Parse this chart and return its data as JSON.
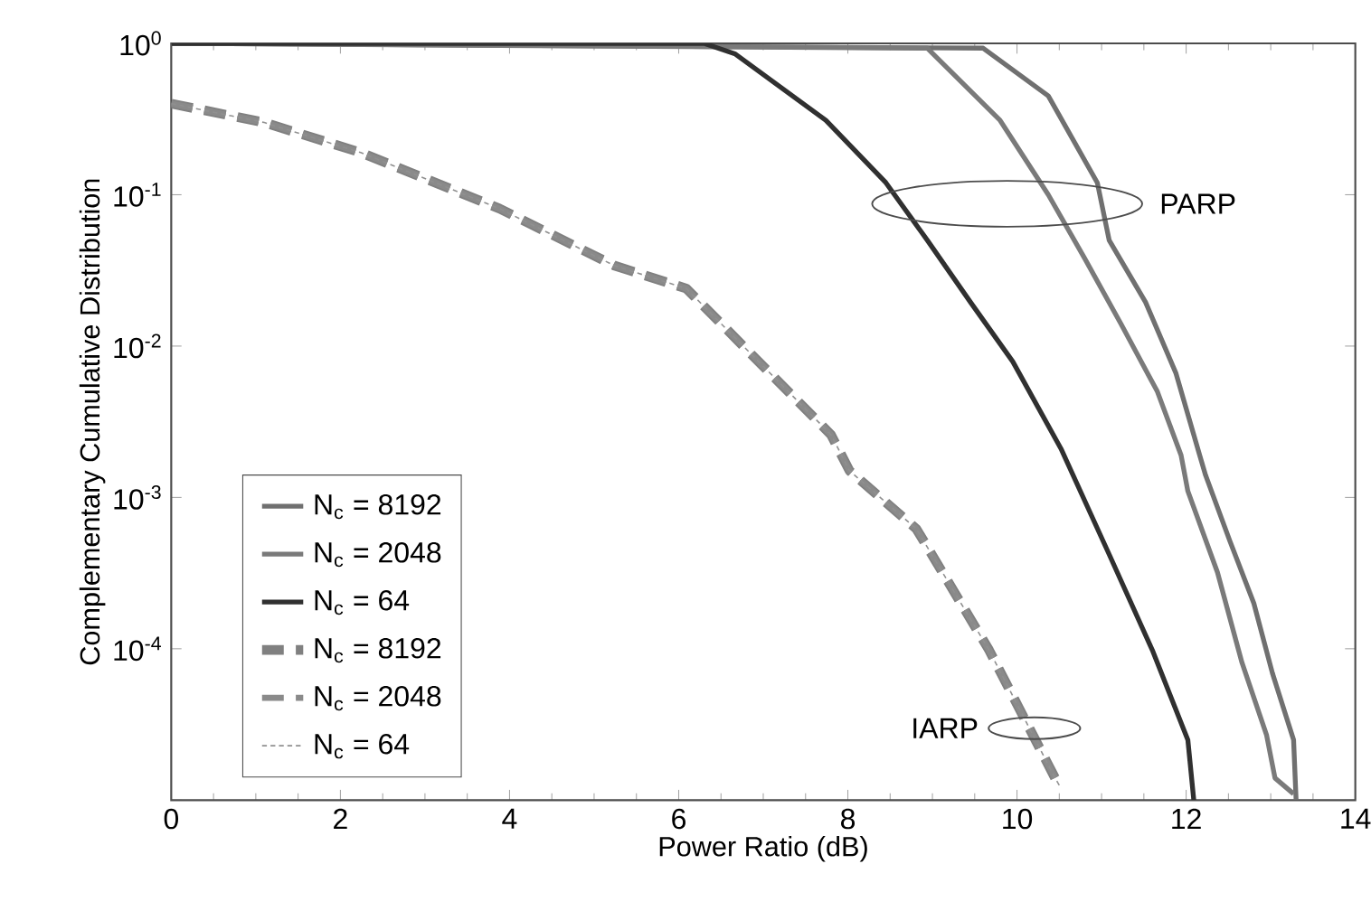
{
  "chart_data": {
    "type": "line",
    "xlabel": "Power Ratio (dB)",
    "ylabel": "Complementary Cumulative Distribution",
    "log": "y",
    "xlim": [
      0,
      14
    ],
    "xticks": [
      0,
      2,
      4,
      6,
      8,
      10,
      12,
      14
    ],
    "ylim": [
      1e-05,
      1
    ],
    "yticks": [
      {
        "value": 1,
        "label": "10$^{0}$"
      },
      {
        "value": 0.1,
        "label": "10$^{-1}$"
      },
      {
        "value": 0.01,
        "label": "10$^{-2}$"
      },
      {
        "value": 0.001,
        "label": "10$^{-3}$"
      },
      {
        "value": 0.0001,
        "label": "10$^{-4}$"
      },
      {
        "value": 1e-05,
        "label": null
      }
    ],
    "legend": "bottom left",
    "grid": false,
    "series": [
      {
        "name": "N$_{c}$ = 8192",
        "color": "#707070",
        "line_style": "solid",
        "x": [
          0,
          9.6,
          10.37,
          10.95,
          11.09,
          11.52,
          11.88,
          12.16,
          12.23,
          12.52,
          12.8,
          13.02,
          13.27,
          13.3
        ],
        "values": [
          1,
          0.93,
          0.45,
          0.12,
          0.05,
          0.0195,
          0.0066,
          0.0019,
          0.0014,
          0.00051,
          0.0002,
          6.9e-05,
          2.5e-05,
          1e-05
        ]
      },
      {
        "name": "N$_{c}$ = 2048",
        "color": "#7a7a7a",
        "line_style": "solid",
        "x": [
          0,
          8.94,
          9.8,
          10.37,
          10.8,
          11.23,
          11.66,
          11.94,
          12.02,
          12.37,
          12.66,
          12.95,
          13.05,
          13.27
        ],
        "values": [
          1,
          0.93,
          0.31,
          0.1,
          0.038,
          0.014,
          0.005,
          0.0019,
          0.0011,
          0.00032,
          8.1e-05,
          2.7e-05,
          1.4e-05,
          1.1e-05
        ]
      },
      {
        "name": "N$_{c}$ = 64",
        "color": "#303030",
        "line_style": "solid",
        "x": [
          0,
          6.3,
          6.67,
          7.74,
          8.45,
          8.94,
          9.45,
          9.95,
          10.52,
          11.09,
          11.6,
          12.02,
          12.09
        ],
        "values": [
          1,
          1,
          0.85,
          0.31,
          0.12,
          0.05,
          0.0195,
          0.0079,
          0.0021,
          0.00042,
          9.8e-05,
          2.5e-05,
          1e-05
        ]
      },
      {
        "name": "N$_{c}$ = 8192",
        "color": "#808080",
        "line_style": "dashed",
        "x": [
          0,
          1.1,
          2.24,
          3.88,
          5.24,
          6.09,
          7.8,
          8.02,
          8.81,
          9.67,
          10.45,
          10.52
        ],
        "values": [
          0.4,
          0.3,
          0.19,
          0.081,
          0.034,
          0.024,
          0.0026,
          0.0015,
          0.00062,
          9.8e-05,
          1.4e-05,
          1.2e-05
        ]
      },
      {
        "name": "N$_{c}$ = 2048",
        "color": "#8a8a8a",
        "line_style": "dashed",
        "x": [
          0,
          1.1,
          2.24,
          3.88,
          5.24,
          6.09,
          7.8,
          8.02,
          8.81,
          9.67,
          10.45,
          10.52
        ],
        "values": [
          0.4,
          0.3,
          0.19,
          0.081,
          0.034,
          0.024,
          0.0026,
          0.0015,
          0.00062,
          9.8e-05,
          1.4e-05,
          1.2e-05
        ]
      },
      {
        "name": "N$_{c}$ = 64",
        "color": "#909090",
        "line_style": "dotted",
        "x": [
          0,
          1.1,
          2.24,
          3.88,
          5.24,
          6.09,
          7.8,
          8.02,
          8.81,
          9.67,
          10.45,
          10.52
        ],
        "values": [
          0.4,
          0.3,
          0.19,
          0.081,
          0.034,
          0.024,
          0.0026,
          0.0015,
          0.00062,
          9.8e-05,
          1.4e-05,
          1.2e-05
        ]
      }
    ],
    "annotations": [
      "PARP",
      "IARP"
    ]
  }
}
